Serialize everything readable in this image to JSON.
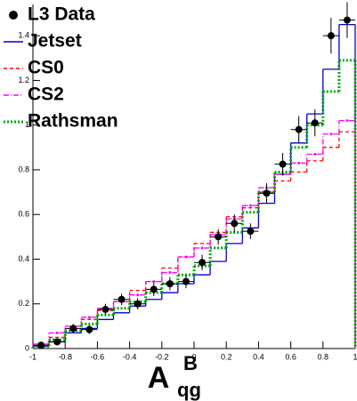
{
  "chart_data": {
    "type": "histogram",
    "x_label": {
      "main": "A",
      "sup": "B",
      "sub": "qg"
    },
    "bins": [
      -1,
      -0.9,
      -0.8,
      -0.7,
      -0.6,
      -0.5,
      -0.4,
      -0.3,
      -0.2,
      -0.1,
      0,
      0.1,
      0.2,
      0.3,
      0.4,
      0.5,
      0.6,
      0.7,
      0.8,
      0.9,
      1
    ],
    "xlim": [
      -1,
      1
    ],
    "xticks": [
      -1,
      -0.8,
      -0.6,
      -0.4,
      -0.2,
      0,
      0.2,
      0.4,
      0.6,
      0.8,
      1
    ],
    "ylim": [
      0,
      1.54
    ],
    "yticks": [
      0,
      0.2,
      0.4,
      0.6,
      0.8,
      1,
      1.2,
      1.4
    ],
    "legend": "top-left",
    "series": [
      {
        "name": "L3 Data",
        "style": "points",
        "color": "#000000",
        "x": [
          -0.95,
          -0.85,
          -0.75,
          -0.65,
          -0.55,
          -0.45,
          -0.35,
          -0.25,
          -0.15,
          -0.05,
          0.05,
          0.15,
          0.25,
          0.35,
          0.45,
          0.55,
          0.65,
          0.75,
          0.85,
          0.95
        ],
        "values": [
          0.015,
          0.03,
          0.09,
          0.085,
          0.175,
          0.22,
          0.2,
          0.265,
          0.29,
          0.3,
          0.385,
          0.5,
          0.56,
          0.525,
          0.695,
          0.825,
          0.98,
          1.01,
          1.4,
          1.47
        ],
        "errors": [
          0.01,
          0.015,
          0.02,
          0.02,
          0.025,
          0.025,
          0.025,
          0.03,
          0.03,
          0.03,
          0.035,
          0.035,
          0.04,
          0.035,
          0.045,
          0.05,
          0.06,
          0.06,
          0.08,
          0.08
        ]
      },
      {
        "name": "Jetset",
        "style": "step",
        "color": "#0000cc",
        "dash": "",
        "values": [
          0.01,
          0.03,
          0.07,
          0.09,
          0.13,
          0.16,
          0.19,
          0.22,
          0.25,
          0.29,
          0.33,
          0.39,
          0.47,
          0.54,
          0.65,
          0.78,
          0.92,
          1.05,
          1.25,
          1.45
        ]
      },
      {
        "name": "CS0",
        "style": "step",
        "color": "#ff0000",
        "dash": "4 3",
        "values": [
          0.02,
          0.05,
          0.1,
          0.13,
          0.17,
          0.21,
          0.26,
          0.3,
          0.36,
          0.41,
          0.47,
          0.52,
          0.59,
          0.63,
          0.7,
          0.75,
          0.79,
          0.84,
          0.9,
          0.97
        ]
      },
      {
        "name": "CS2",
        "style": "step",
        "color": "#ff00ff",
        "dash": "6 2 1 2",
        "values": [
          0.02,
          0.07,
          0.1,
          0.14,
          0.18,
          0.21,
          0.24,
          0.3,
          0.34,
          0.41,
          0.45,
          0.51,
          0.58,
          0.64,
          0.72,
          0.78,
          0.83,
          0.87,
          0.96,
          1.02
        ]
      },
      {
        "name": "Rathsman",
        "style": "step",
        "color": "#00aa00",
        "dash": "2 2",
        "values": [
          0.01,
          0.04,
          0.08,
          0.11,
          0.15,
          0.18,
          0.21,
          0.25,
          0.29,
          0.33,
          0.37,
          0.45,
          0.52,
          0.61,
          0.7,
          0.79,
          0.9,
          1.0,
          1.15,
          1.29
        ]
      }
    ]
  }
}
